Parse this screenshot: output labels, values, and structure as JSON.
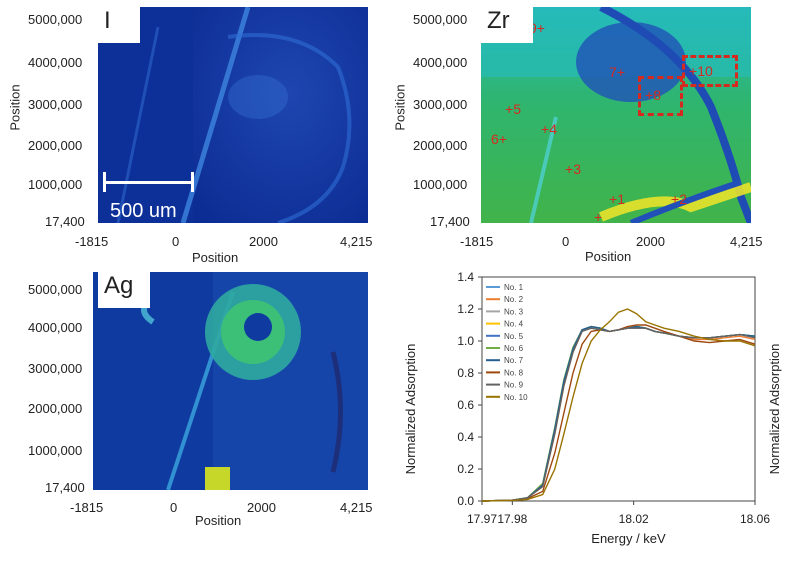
{
  "maps": [
    {
      "label": "I",
      "xticks": [
        "-1815",
        "0",
        "2000",
        "4,215"
      ],
      "yticks": [
        "5000,000",
        "4000,000",
        "3000,000",
        "2000,000",
        "1000,000",
        "17,400"
      ],
      "xlabel": "Position",
      "ylabel": "Position",
      "scalebar": "500 um"
    },
    {
      "label": "Zr",
      "xticks": [
        "-1815",
        "0",
        "2000",
        "4,215"
      ],
      "yticks": [
        "5000,000",
        "4000,000",
        "3000,000",
        "2000,000",
        "1000,000",
        "17,400"
      ],
      "xlabel": "Position",
      "ylabel": "Position",
      "markers": [
        "1",
        "2",
        "3",
        "4",
        "5",
        "6",
        "7",
        "8",
        "9",
        "10"
      ]
    },
    {
      "label": "Ag",
      "xticks": [
        "-1815",
        "0",
        "2000",
        "4,215"
      ],
      "yticks": [
        "5000,000",
        "4000,000",
        "3000,000",
        "2000,000",
        "1000,000",
        "17,400"
      ],
      "xlabel": "Position",
      "ylabel": ""
    }
  ],
  "chart_data": {
    "type": "line",
    "xlabel": "Energy / keV",
    "ylabel": "Normalized Adsorption",
    "ylabel_right": "Normalized Adsorption",
    "xlim": [
      17.97,
      18.06
    ],
    "ylim": [
      0.0,
      1.4
    ],
    "xticks": [
      "17.97",
      "17.98",
      "18.02",
      "18.06"
    ],
    "yticks": [
      "0.0",
      "0.2",
      "0.4",
      "0.6",
      "0.8",
      "1.0",
      "1.2",
      "1.4"
    ],
    "x": [
      17.97,
      17.98,
      17.985,
      17.99,
      17.994,
      17.997,
      18.0,
      18.003,
      18.006,
      18.009,
      18.012,
      18.015,
      18.018,
      18.021,
      18.024,
      18.027,
      18.03,
      18.035,
      18.04,
      18.045,
      18.05,
      18.055,
      18.06
    ],
    "series": [
      {
        "name": "No. 1",
        "color": "#5b9bd5",
        "values": [
          0,
          0.005,
          0.02,
          0.1,
          0.45,
          0.75,
          0.95,
          1.07,
          1.09,
          1.08,
          1.06,
          1.07,
          1.08,
          1.09,
          1.08,
          1.06,
          1.05,
          1.03,
          1.02,
          1.02,
          1.03,
          1.04,
          1.03
        ]
      },
      {
        "name": "No. 2",
        "color": "#ed7d31",
        "values": [
          0,
          0.005,
          0.02,
          0.09,
          0.42,
          0.72,
          0.93,
          1.06,
          1.09,
          1.08,
          1.06,
          1.07,
          1.08,
          1.09,
          1.08,
          1.06,
          1.05,
          1.03,
          1.01,
          1.01,
          1.02,
          1.03,
          1.01
        ]
      },
      {
        "name": "No. 3",
        "color": "#a5a5a5",
        "values": [
          0,
          0.005,
          0.02,
          0.1,
          0.45,
          0.74,
          0.95,
          1.07,
          1.08,
          1.07,
          1.06,
          1.07,
          1.08,
          1.08,
          1.08,
          1.06,
          1.05,
          1.03,
          1.02,
          1.02,
          1.03,
          1.04,
          1.03
        ]
      },
      {
        "name": "No. 4",
        "color": "#ffc000",
        "values": [
          0,
          0.005,
          0.02,
          0.1,
          0.44,
          0.74,
          0.95,
          1.07,
          1.09,
          1.08,
          1.06,
          1.07,
          1.08,
          1.09,
          1.08,
          1.06,
          1.05,
          1.03,
          1.02,
          1.02,
          1.03,
          1.04,
          1.03
        ]
      },
      {
        "name": "No. 5",
        "color": "#4472c4",
        "values": [
          0,
          0.005,
          0.02,
          0.1,
          0.45,
          0.75,
          0.96,
          1.07,
          1.09,
          1.08,
          1.06,
          1.07,
          1.08,
          1.09,
          1.08,
          1.06,
          1.05,
          1.03,
          1.02,
          1.02,
          1.03,
          1.04,
          1.03
        ]
      },
      {
        "name": "No. 6",
        "color": "#70ad47",
        "values": [
          0,
          0.005,
          0.02,
          0.11,
          0.46,
          0.76,
          0.96,
          1.07,
          1.09,
          1.08,
          1.06,
          1.07,
          1.08,
          1.09,
          1.08,
          1.06,
          1.05,
          1.03,
          1.02,
          1.02,
          1.03,
          1.04,
          1.03
        ]
      },
      {
        "name": "No. 7",
        "color": "#255e91",
        "values": [
          0,
          0.005,
          0.02,
          0.1,
          0.45,
          0.75,
          0.95,
          1.07,
          1.09,
          1.08,
          1.06,
          1.07,
          1.08,
          1.09,
          1.08,
          1.06,
          1.05,
          1.03,
          1.02,
          1.02,
          1.03,
          1.04,
          1.03
        ]
      },
      {
        "name": "No. 8",
        "color": "#9e480e",
        "values": [
          0,
          0.005,
          0.015,
          0.06,
          0.3,
          0.55,
          0.8,
          0.98,
          1.06,
          1.07,
          1.06,
          1.07,
          1.09,
          1.1,
          1.1,
          1.08,
          1.06,
          1.03,
          1.0,
          0.99,
          1.0,
          1.01,
          0.98
        ]
      },
      {
        "name": "No. 9",
        "color": "#636363",
        "values": [
          0,
          0.005,
          0.02,
          0.09,
          0.42,
          0.72,
          0.93,
          1.06,
          1.08,
          1.07,
          1.06,
          1.07,
          1.08,
          1.08,
          1.08,
          1.06,
          1.05,
          1.03,
          1.02,
          1.02,
          1.03,
          1.04,
          1.02
        ]
      },
      {
        "name": "No. 10",
        "color": "#997300",
        "values": [
          0,
          0.004,
          0.01,
          0.04,
          0.2,
          0.42,
          0.65,
          0.86,
          1.0,
          1.07,
          1.12,
          1.18,
          1.2,
          1.17,
          1.12,
          1.1,
          1.08,
          1.06,
          1.03,
          1.01,
          1.0,
          1.0,
          0.97
        ]
      }
    ]
  }
}
